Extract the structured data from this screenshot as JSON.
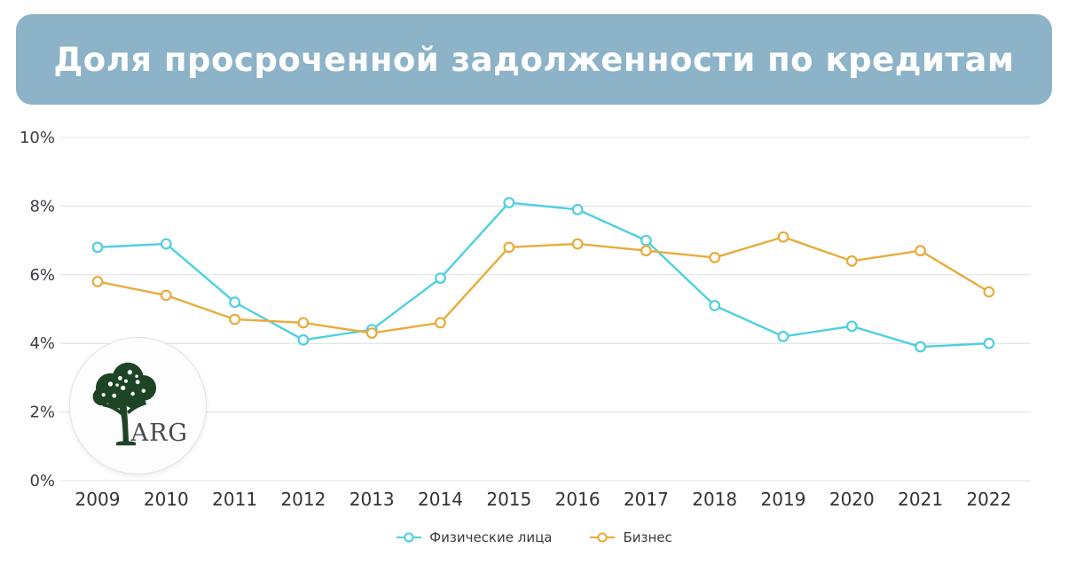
{
  "header": {
    "title": "Доля просроченной задолженности по кредитам",
    "bg_color": "#8CB3C7",
    "text_color": "#ffffff"
  },
  "logo": {
    "text": "ARG"
  },
  "colors": {
    "grid": "#dce0e5",
    "axis_text": "#35353d"
  },
  "chart_data": {
    "type": "line",
    "title": "Доля просроченной задолженности по кредитам",
    "x": [
      "2009",
      "2010",
      "2011",
      "2012",
      "2013",
      "2014",
      "2015",
      "2016",
      "2017",
      "2018",
      "2019",
      "2020",
      "2021",
      "2022"
    ],
    "series": [
      {
        "id": "individuals",
        "name": "Физические лица",
        "color": "#4DD0E1",
        "values": [
          6.8,
          6.9,
          5.2,
          4.1,
          4.4,
          5.9,
          8.1,
          7.9,
          7.0,
          5.1,
          4.2,
          4.5,
          3.9,
          4.0
        ]
      },
      {
        "id": "business",
        "name": "Бизнес",
        "color": "#E8AC3C",
        "values": [
          5.8,
          5.4,
          4.7,
          4.6,
          4.3,
          4.6,
          6.8,
          6.9,
          6.7,
          6.5,
          7.1,
          6.4,
          6.7,
          5.5
        ]
      }
    ],
    "xlabel": "",
    "ylabel": "",
    "ylim": [
      0,
      10
    ],
    "yticks": [
      0,
      2,
      4,
      6,
      8,
      10
    ],
    "ytick_format": "{v}%",
    "grid": true,
    "legend_position": "bottom",
    "marker": "open-circle"
  }
}
